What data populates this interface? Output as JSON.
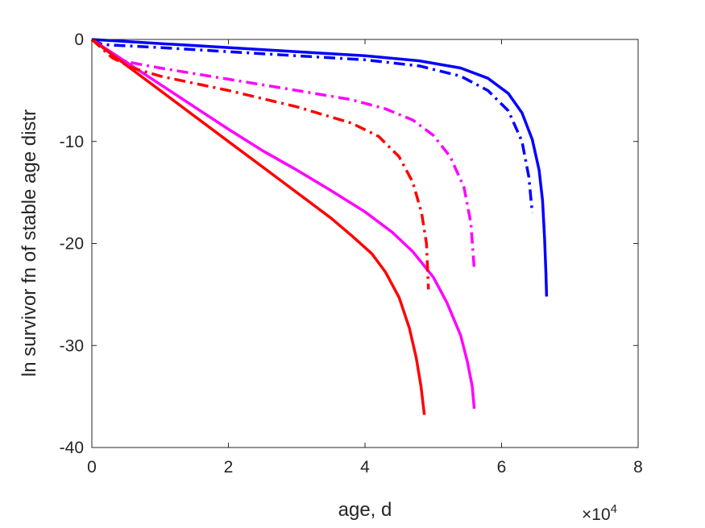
{
  "chart_data": {
    "type": "line",
    "title": "",
    "xlabel": "age, d",
    "ylabel": "ln survivor fn of stable age distr",
    "x_exponent_label": {
      "base": "×10",
      "exponent": "4"
    },
    "xlim": [
      0,
      80000
    ],
    "ylim": [
      -40,
      0
    ],
    "x_ticks": [
      0,
      20000,
      40000,
      60000,
      80000
    ],
    "x_tick_labels": [
      "0",
      "2",
      "4",
      "6",
      "8"
    ],
    "y_ticks": [
      0,
      -10,
      -20,
      -30,
      -40
    ],
    "y_tick_labels": [
      "0",
      "-10",
      "-20",
      "-30",
      "-40"
    ],
    "grid": false,
    "series": [
      {
        "color": "#0000ff",
        "style": "solid",
        "points": [
          [
            0,
            0
          ],
          [
            10000,
            -0.4
          ],
          [
            20000,
            -0.8
          ],
          [
            30000,
            -1.2
          ],
          [
            40000,
            -1.6
          ],
          [
            48000,
            -2.1
          ],
          [
            54000,
            -2.8
          ],
          [
            58000,
            -3.8
          ],
          [
            61000,
            -5.3
          ],
          [
            63000,
            -7.2
          ],
          [
            64500,
            -9.8
          ],
          [
            65500,
            -12.8
          ],
          [
            66000,
            -15.8
          ],
          [
            66300,
            -19.5
          ],
          [
            66500,
            -23
          ],
          [
            66600,
            -25.2
          ]
        ]
      },
      {
        "color": "#0000ff",
        "style": "dashdot",
        "points": [
          [
            0,
            0
          ],
          [
            1500,
            -0.5
          ],
          [
            10000,
            -0.8
          ],
          [
            20000,
            -1.2
          ],
          [
            30000,
            -1.6
          ],
          [
            40000,
            -2.0
          ],
          [
            48000,
            -2.6
          ],
          [
            54000,
            -3.6
          ],
          [
            58000,
            -5.0
          ],
          [
            61000,
            -7.0
          ],
          [
            63000,
            -10.0
          ],
          [
            64000,
            -13.5
          ],
          [
            64500,
            -17.0
          ]
        ]
      },
      {
        "color": "#ff00ff",
        "style": "solid",
        "points": [
          [
            0,
            0
          ],
          [
            5000,
            -2.2
          ],
          [
            10000,
            -4.4
          ],
          [
            15000,
            -6.6
          ],
          [
            20000,
            -8.8
          ],
          [
            25000,
            -10.9
          ],
          [
            30000,
            -12.8
          ],
          [
            35000,
            -14.8
          ],
          [
            40000,
            -16.9
          ],
          [
            44000,
            -18.9
          ],
          [
            47000,
            -20.8
          ],
          [
            50000,
            -23.3
          ],
          [
            52000,
            -25.8
          ],
          [
            54000,
            -29.0
          ],
          [
            55000,
            -31.6
          ],
          [
            55700,
            -34.0
          ],
          [
            56000,
            -36.2
          ]
        ]
      },
      {
        "color": "#ff00ff",
        "style": "dashdot",
        "points": [
          [
            0,
            0
          ],
          [
            3000,
            -1.8
          ],
          [
            6000,
            -2.3
          ],
          [
            10000,
            -2.8
          ],
          [
            20000,
            -3.9
          ],
          [
            30000,
            -5.0
          ],
          [
            38000,
            -5.9
          ],
          [
            43000,
            -6.8
          ],
          [
            47000,
            -7.9
          ],
          [
            50000,
            -9.4
          ],
          [
            52500,
            -11.5
          ],
          [
            54500,
            -14.5
          ],
          [
            55500,
            -18.0
          ],
          [
            56000,
            -22.5
          ]
        ]
      },
      {
        "color": "#ff0000",
        "style": "solid",
        "points": [
          [
            0,
            0
          ],
          [
            5000,
            -2.5
          ],
          [
            10000,
            -5.0
          ],
          [
            15000,
            -7.5
          ],
          [
            20000,
            -10.0
          ],
          [
            25000,
            -12.5
          ],
          [
            30000,
            -15.0
          ],
          [
            35000,
            -17.5
          ],
          [
            38000,
            -19.2
          ],
          [
            41000,
            -21.0
          ],
          [
            43000,
            -22.8
          ],
          [
            45000,
            -25.3
          ],
          [
            46500,
            -28.3
          ],
          [
            47500,
            -31.2
          ],
          [
            48200,
            -34.0
          ],
          [
            48700,
            -36.8
          ]
        ]
      },
      {
        "color": "#ff0000",
        "style": "dashdot",
        "points": [
          [
            0,
            0
          ],
          [
            3000,
            -1.8
          ],
          [
            6000,
            -2.8
          ],
          [
            10000,
            -3.6
          ],
          [
            20000,
            -5.0
          ],
          [
            30000,
            -6.6
          ],
          [
            38000,
            -8.2
          ],
          [
            42000,
            -9.5
          ],
          [
            45000,
            -11.5
          ],
          [
            47000,
            -14.0
          ],
          [
            48300,
            -17.0
          ],
          [
            49000,
            -20.0
          ],
          [
            49300,
            -24.5
          ]
        ]
      }
    ]
  }
}
